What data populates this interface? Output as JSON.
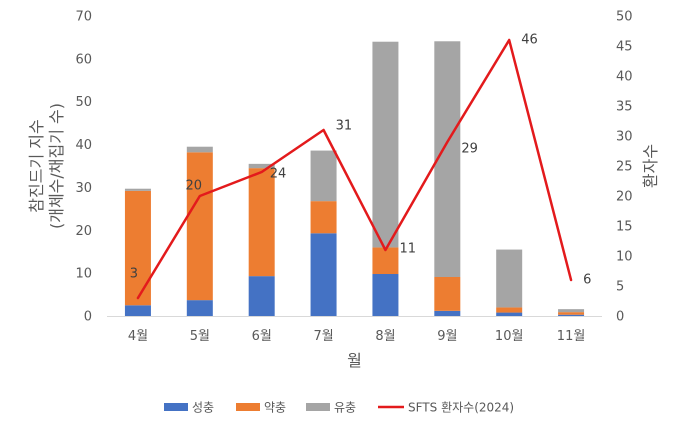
{
  "chart_data": {
    "type": "bar",
    "subtype": "stacked-bar-with-line",
    "categories": [
      "4월",
      "5월",
      "6월",
      "7월",
      "8월",
      "9월",
      "10월",
      "11월"
    ],
    "series": [
      {
        "name": "성충",
        "axis": "left",
        "color": "#4472C4",
        "values": [
          2.5,
          3.7,
          9.3,
          19.3,
          9.8,
          1.2,
          0.8,
          0.3
        ]
      },
      {
        "name": "약충",
        "axis": "left",
        "color": "#ED7D31",
        "values": [
          26.7,
          34.5,
          25.2,
          7.5,
          6.2,
          7.9,
          1.2,
          0.6
        ]
      },
      {
        "name": "유충",
        "axis": "left",
        "color": "#A5A5A5",
        "values": [
          0.5,
          1.3,
          1.0,
          11.8,
          48.0,
          55.0,
          13.5,
          0.7
        ]
      },
      {
        "name": "SFTS  환자수(2024)",
        "axis": "right",
        "type": "line",
        "color": "#E31A1C",
        "values": [
          3,
          20,
          24,
          31,
          11,
          29,
          46,
          6
        ]
      }
    ],
    "data_labels": [
      "3",
      "20",
      "24",
      "31",
      "11",
      "29",
      "46",
      "6"
    ],
    "xlabel": "월",
    "ylabel_lines": [
      "참진드기 지수",
      "(개체수/채집기 수)"
    ],
    "ylabel_right": "환자수",
    "ylim": [
      0,
      70
    ],
    "yticks": [
      "0",
      "10",
      "20",
      "30",
      "40",
      "50",
      "60",
      "70"
    ],
    "ylim_right": [
      0,
      50
    ],
    "yticks_right": [
      "0",
      "5",
      "10",
      "15",
      "20",
      "25",
      "30",
      "35",
      "40",
      "45",
      "50"
    ],
    "grid": false,
    "legend_position": "bottom"
  }
}
